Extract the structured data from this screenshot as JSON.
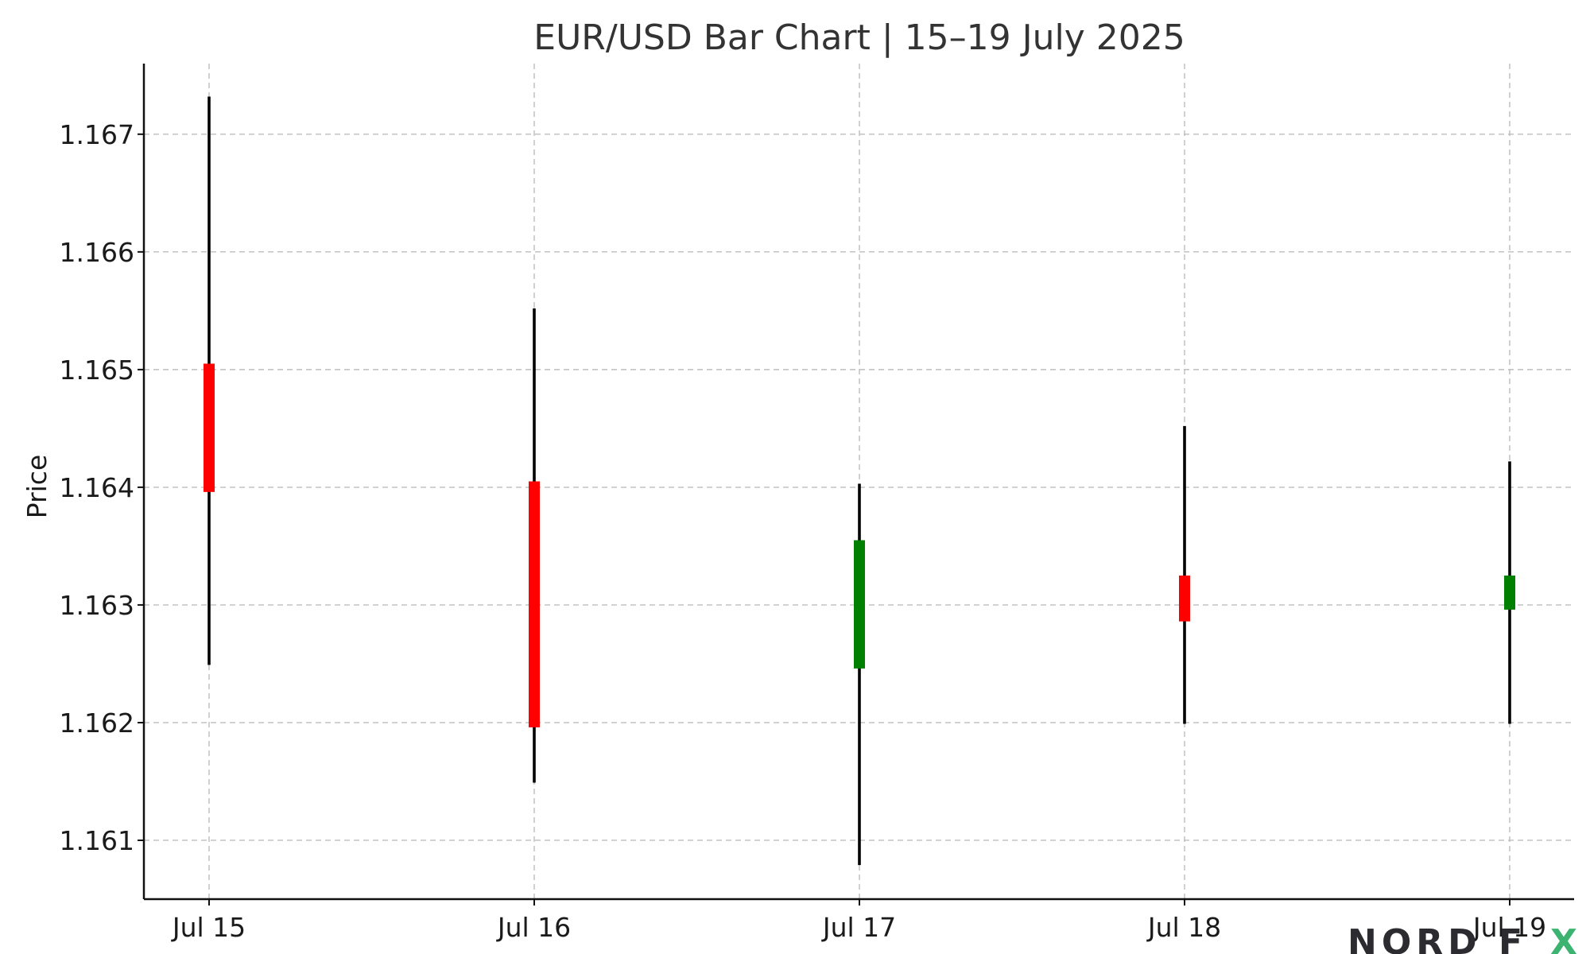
{
  "chart_data": {
    "type": "bar",
    "title": "EUR/USD Bar Chart | 15–19 July 2025",
    "xlabel": "",
    "ylabel": "Price",
    "ylim": [
      1.1605,
      1.1676
    ],
    "yticks": [
      "1.161",
      "1.162",
      "1.163",
      "1.164",
      "1.165",
      "1.166",
      "1.167"
    ],
    "grid": true,
    "categories": [
      "Jul 15",
      "Jul 16",
      "Jul 17",
      "Jul 18",
      "Jul 19"
    ],
    "ohlc": [
      {
        "date": "Jul 15",
        "open": 1.16505,
        "high": 1.16732,
        "low": 1.16249,
        "close": 1.16396
      },
      {
        "date": "Jul 16",
        "open": 1.16405,
        "high": 1.16552,
        "low": 1.16149,
        "close": 1.16196
      },
      {
        "date": "Jul 17",
        "open": 1.16246,
        "high": 1.16403,
        "low": 1.16079,
        "close": 1.16355
      },
      {
        "date": "Jul 18",
        "open": 1.16325,
        "high": 1.16452,
        "low": 1.16199,
        "close": 1.16286
      },
      {
        "date": "Jul 19",
        "open": 1.16296,
        "high": 1.16422,
        "low": 1.16199,
        "close": 1.16325
      }
    ],
    "colors": {
      "up": "#008000",
      "down": "#ff0000",
      "wick": "#000000",
      "grid": "#bdbdbd",
      "text": "#333333"
    }
  },
  "watermark": {
    "text": "NORD FX",
    "colors": {
      "main": "#2b2b30",
      "accent": "#3cb371"
    }
  }
}
